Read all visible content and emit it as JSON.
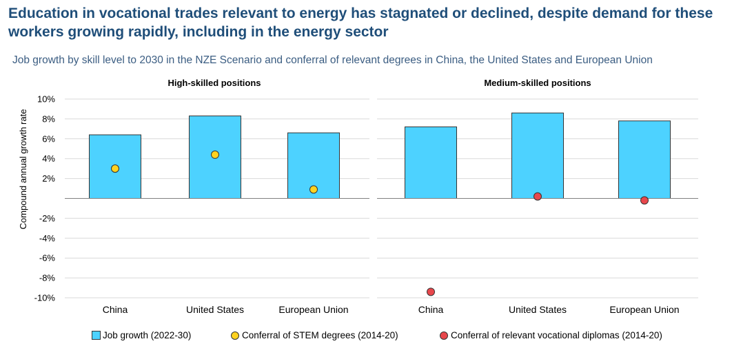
{
  "title": "Education in vocational trades relevant to energy has stagnated or declined, despite demand for these workers growing rapidly, including in the energy sector",
  "subtitle": "Job growth by skill level to 2030 in the NZE Scenario and conferral of relevant degrees in China, the United States and European Union",
  "colors": {
    "bar": "#4dd2ff",
    "stem_dot": "#ffd21f",
    "vocational_dot": "#e8474c",
    "title": "#1f4e79",
    "grid": "#d9d9d9"
  },
  "chart_data": [
    {
      "type": "bar",
      "title": "High-skilled positions",
      "ylabel": "Compound annual growth rate",
      "ylim": [
        -10,
        10
      ],
      "yticks": [
        "10%",
        "8%",
        "6%",
        "4%",
        "2%",
        "",
        "-2%",
        "-4%",
        "-6%",
        "-8%",
        "-10%"
      ],
      "categories": [
        "China",
        "United States",
        "European Union"
      ],
      "series": [
        {
          "name": "Job growth (2022-30)",
          "kind": "bar",
          "values": [
            6.4,
            8.3,
            6.6
          ]
        },
        {
          "name": "Conferral of STEM degrees (2014-20)",
          "kind": "dot",
          "values": [
            3.0,
            4.4,
            0.9
          ]
        }
      ]
    },
    {
      "type": "bar",
      "title": "Medium-skilled positions",
      "ylim": [
        -10,
        10
      ],
      "categories": [
        "China",
        "United States",
        "European Union"
      ],
      "series": [
        {
          "name": "Job growth (2022-30)",
          "kind": "bar",
          "values": [
            7.2,
            8.6,
            7.8
          ]
        },
        {
          "name": "Conferral of relevant vocational diplomas (2014-20)",
          "kind": "dot",
          "values": [
            -9.4,
            0.2,
            -0.2
          ]
        }
      ]
    }
  ],
  "legend": [
    "Job growth (2022-30)",
    "Conferral of STEM degrees (2014-20)",
    "Conferral of relevant vocational diplomas (2014-20)"
  ]
}
